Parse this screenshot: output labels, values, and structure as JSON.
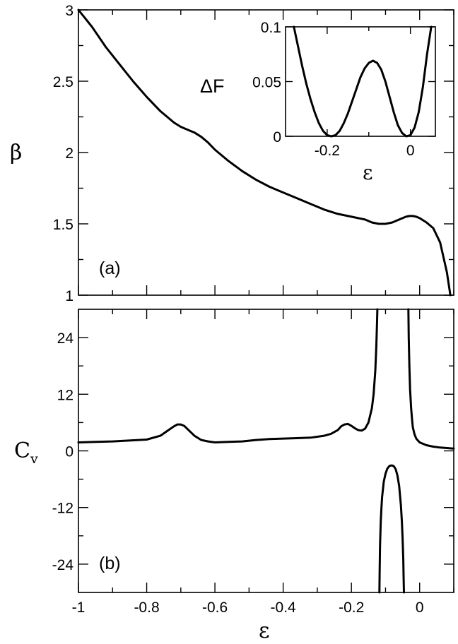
{
  "chart_data": [
    {
      "name": "panel-a",
      "type": "line",
      "panel_label": "(a)",
      "xlabel": "",
      "ylabel": "β",
      "xlim": [
        -1,
        0.1
      ],
      "ylim": [
        1,
        3
      ],
      "xticks": [
        -1,
        -0.8,
        -0.6,
        -0.4,
        -0.2,
        0
      ],
      "xtick_labels": [
        "",
        "",
        "",
        "",
        "",
        ""
      ],
      "yticks": [
        1,
        1.5,
        2,
        2.5,
        3
      ],
      "ytick_labels": [
        "1",
        "1.5",
        "2",
        "2.5",
        "3"
      ],
      "grid": false,
      "series": [
        {
          "x": [
            -1.0,
            -0.96,
            -0.92,
            -0.88,
            -0.84,
            -0.8,
            -0.76,
            -0.72,
            -0.7,
            -0.68,
            -0.66,
            -0.64,
            -0.62,
            -0.6,
            -0.56,
            -0.52,
            -0.48,
            -0.44,
            -0.4,
            -0.36,
            -0.32,
            -0.28,
            -0.24,
            -0.2,
            -0.18,
            -0.16,
            -0.14,
            -0.12,
            -0.1,
            -0.08,
            -0.06,
            -0.04,
            -0.03,
            -0.02,
            -0.01,
            0.0,
            0.02,
            0.04,
            0.06,
            0.08,
            0.09
          ],
          "values": [
            3.02,
            2.88,
            2.74,
            2.62,
            2.5,
            2.39,
            2.29,
            2.21,
            2.18,
            2.16,
            2.14,
            2.11,
            2.07,
            2.02,
            1.94,
            1.87,
            1.81,
            1.76,
            1.72,
            1.68,
            1.64,
            1.6,
            1.57,
            1.55,
            1.54,
            1.53,
            1.51,
            1.5,
            1.5,
            1.51,
            1.53,
            1.55,
            1.555,
            1.555,
            1.55,
            1.54,
            1.51,
            1.47,
            1.37,
            1.16,
            1.0
          ]
        }
      ],
      "inset": {
        "type": "line",
        "xlabel": "ε",
        "ylabel": "ΔF",
        "xlim": [
          -0.3,
          0.06
        ],
        "ylim": [
          0,
          0.1
        ],
        "xticks": [
          -0.2,
          0
        ],
        "xtick_labels": [
          "-0.2",
          "0"
        ],
        "yticks": [
          0,
          0.05,
          0.1
        ],
        "ytick_labels": [
          "0",
          "0.05",
          "0.1"
        ],
        "series": [
          {
            "x": [
              -0.28,
              -0.27,
              -0.26,
              -0.25,
              -0.24,
              -0.23,
              -0.22,
              -0.21,
              -0.2,
              -0.19,
              -0.18,
              -0.17,
              -0.16,
              -0.15,
              -0.14,
              -0.13,
              -0.12,
              -0.11,
              -0.1,
              -0.09,
              -0.08,
              -0.07,
              -0.06,
              -0.05,
              -0.04,
              -0.03,
              -0.02,
              -0.01,
              0.0,
              0.01,
              0.02,
              0.03,
              0.04,
              0.05
            ],
            "values": [
              0.1,
              0.082,
              0.064,
              0.048,
              0.034,
              0.022,
              0.012,
              0.005,
              0.001,
              0.0,
              0.001,
              0.005,
              0.012,
              0.021,
              0.032,
              0.043,
              0.054,
              0.062,
              0.067,
              0.069,
              0.067,
              0.061,
              0.05,
              0.036,
              0.022,
              0.01,
              0.003,
              0.0,
              0.001,
              0.008,
              0.022,
              0.045,
              0.075,
              0.1
            ]
          }
        ]
      }
    },
    {
      "name": "panel-b",
      "type": "line",
      "panel_label": "(b)",
      "xlabel": "ε",
      "ylabel": "C",
      "ylabel_subscript": "v",
      "xlim": [
        -1,
        0.1
      ],
      "ylim": [
        -30,
        30
      ],
      "xticks": [
        -1,
        -0.8,
        -0.6,
        -0.4,
        -0.2,
        0
      ],
      "xtick_labels": [
        "-1",
        "-0.8",
        "-0.6",
        "-0.4",
        "-0.2",
        "0"
      ],
      "yticks": [
        -24,
        -12,
        0,
        12,
        24
      ],
      "ytick_labels": [
        "-24",
        "-12",
        "0",
        "12",
        "24"
      ],
      "grid": false,
      "series": [
        {
          "segment": "positive-left",
          "x": [
            -1.0,
            -0.9,
            -0.8,
            -0.76,
            -0.74,
            -0.72,
            -0.71,
            -0.7,
            -0.69,
            -0.68,
            -0.66,
            -0.64,
            -0.62,
            -0.6,
            -0.56,
            -0.52,
            -0.48,
            -0.44,
            -0.4,
            -0.36,
            -0.32,
            -0.28,
            -0.26,
            -0.24,
            -0.23,
            -0.22,
            -0.21,
            -0.2,
            -0.19,
            -0.18,
            -0.17,
            -0.16,
            -0.15,
            -0.14,
            -0.135,
            -0.13,
            -0.127,
            -0.125,
            -0.124
          ],
          "values": [
            1.8,
            2.0,
            2.4,
            3.2,
            4.2,
            5.2,
            5.6,
            5.6,
            5.3,
            4.6,
            3.2,
            2.3,
            2.0,
            1.8,
            1.9,
            2.0,
            2.3,
            2.5,
            2.6,
            2.7,
            2.8,
            3.2,
            3.6,
            4.4,
            5.2,
            5.6,
            5.7,
            5.3,
            4.8,
            4.4,
            4.3,
            4.7,
            6.0,
            9.0,
            12.0,
            17.0,
            22.0,
            27.0,
            30.0
          ]
        },
        {
          "segment": "positive-right",
          "x": [
            -0.033,
            -0.032,
            -0.03,
            -0.028,
            -0.025,
            -0.022,
            -0.02,
            -0.015,
            -0.01,
            0.0,
            0.02,
            0.04,
            0.06,
            0.08,
            0.1
          ],
          "values": [
            30.0,
            24.0,
            18.0,
            13.0,
            9.0,
            6.5,
            5.0,
            3.5,
            2.6,
            1.8,
            1.2,
            0.9,
            0.7,
            0.6,
            0.5
          ]
        },
        {
          "segment": "negative",
          "x": [
            -0.118,
            -0.117,
            -0.116,
            -0.114,
            -0.112,
            -0.11,
            -0.105,
            -0.1,
            -0.095,
            -0.09,
            -0.085,
            -0.08,
            -0.075,
            -0.07,
            -0.065,
            -0.06,
            -0.055,
            -0.052,
            -0.05,
            -0.048,
            -0.047,
            -0.046
          ],
          "values": [
            -30.0,
            -25.0,
            -20.0,
            -15.0,
            -12.0,
            -9.8,
            -6.5,
            -4.8,
            -3.8,
            -3.3,
            -3.1,
            -3.1,
            -3.3,
            -3.9,
            -5.2,
            -7.5,
            -11.5,
            -15.0,
            -18.5,
            -23.0,
            -26.5,
            -30.0
          ]
        }
      ]
    }
  ]
}
